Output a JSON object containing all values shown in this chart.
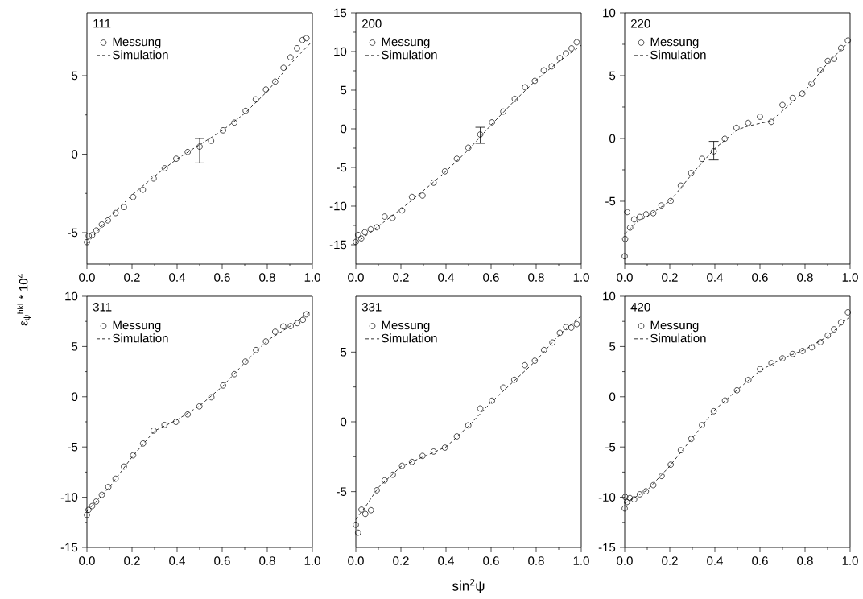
{
  "chart_data": [
    {
      "type": "scatter",
      "title": "111",
      "ylabel": "ε$_{ψ}$$^{hkl}$ * 10$^{4}$",
      "legend": "top left",
      "xlim": [
        0,
        1
      ],
      "ylim": [
        -7,
        9
      ],
      "xticks": [
        {
          "value": 0,
          "label": "0.0"
        },
        {
          "value": 0.2,
          "label": "0.2"
        },
        {
          "value": 0.4,
          "label": "0.4"
        },
        {
          "value": 0.6,
          "label": "0.6"
        },
        {
          "value": 0.8,
          "label": "0.8"
        },
        {
          "value": 1,
          "label": "1.0"
        }
      ],
      "yticks": [
        -5,
        0,
        5
      ],
      "series": [
        {
          "name": "Messung",
          "marker": "circle",
          "color": "#000000",
          "x": [
            0,
            0.008,
            0.023,
            0.042,
            0.066,
            0.093,
            0.127,
            0.164,
            0.205,
            0.248,
            0.296,
            0.345,
            0.396,
            0.447,
            0.5,
            0.551,
            0.604,
            0.654,
            0.704,
            0.749,
            0.794,
            0.835,
            0.872,
            0.903,
            0.932,
            0.956,
            0.974
          ],
          "values": [
            -5.6,
            -5.2,
            -5.16,
            -4.86,
            -4.48,
            -4.22,
            -3.75,
            -3.37,
            -2.73,
            -2.27,
            -1.55,
            -0.9,
            -0.29,
            0.14,
            0.48,
            0.85,
            1.52,
            2.01,
            2.76,
            3.49,
            4.12,
            4.62,
            5.5,
            6.17,
            6.75,
            7.27,
            7.39
          ],
          "errors": [
            null,
            null,
            null,
            null,
            null,
            null,
            null,
            null,
            null,
            null,
            null,
            null,
            null,
            null,
            [
              -0.56,
              1.0
            ],
            null,
            null,
            null,
            null,
            null,
            null,
            null,
            null,
            null,
            null,
            null,
            null
          ]
        },
        {
          "name": "Simulation",
          "type": "line",
          "marker": "none",
          "line_style": "dashed",
          "color": "#000000",
          "x": [
            0,
            0.1,
            0.2,
            0.3,
            0.4,
            0.5,
            0.6,
            0.7,
            0.8,
            0.9,
            1.0
          ],
          "values": [
            -5.7,
            -4.0,
            -2.6,
            -1.4,
            -0.3,
            0.6,
            1.5,
            2.6,
            4.0,
            5.7,
            7.2
          ]
        }
      ]
    },
    {
      "type": "scatter",
      "title": "200",
      "legend": "top left",
      "xlim": [
        0,
        1
      ],
      "ylim": [
        -17.5,
        15
      ],
      "xticks": [
        {
          "value": 0,
          "label": "0.0"
        },
        {
          "value": 0.2,
          "label": "0.2"
        },
        {
          "value": 0.4,
          "label": "0.4"
        },
        {
          "value": 0.6,
          "label": "0.6"
        },
        {
          "value": 0.8,
          "label": "0.8"
        },
        {
          "value": 1,
          "label": "1.0"
        }
      ],
      "yticks": [
        -15,
        -10,
        -5,
        0,
        5,
        10,
        15
      ],
      "series": [
        {
          "name": "Messung",
          "marker": "circle",
          "color": "#000000",
          "x": [
            0,
            0.01,
            0.024,
            0.04,
            0.066,
            0.093,
            0.128,
            0.163,
            0.205,
            0.249,
            0.296,
            0.345,
            0.395,
            0.448,
            0.499,
            0.552,
            0.604,
            0.654,
            0.705,
            0.751,
            0.794,
            0.834,
            0.869,
            0.905,
            0.932,
            0.957,
            0.98
          ],
          "values": [
            -14.63,
            -13.73,
            -14.18,
            -13.38,
            -13.0,
            -12.75,
            -11.36,
            -11.53,
            -10.56,
            -8.82,
            -8.64,
            -6.97,
            -5.51,
            -3.87,
            -2.44,
            -0.73,
            0.84,
            2.23,
            3.87,
            5.37,
            6.2,
            7.56,
            8.08,
            9.16,
            9.76,
            10.42,
            11.2
          ],
          "errors": [
            null,
            null,
            null,
            null,
            null,
            null,
            null,
            null,
            null,
            null,
            null,
            null,
            null,
            null,
            null,
            [
              -1.88,
              0.2
            ],
            null,
            null,
            null,
            null,
            null,
            null,
            null,
            null,
            null,
            null,
            null
          ]
        },
        {
          "name": "Simulation",
          "type": "line",
          "marker": "none",
          "line_style": "dashed",
          "color": "#000000",
          "x": [
            0,
            0.1,
            0.2,
            0.3,
            0.4,
            0.5,
            0.6,
            0.7,
            0.8,
            0.9,
            1.0
          ],
          "values": [
            -14.8,
            -12.6,
            -10.4,
            -8.0,
            -5.5,
            -2.7,
            0.5,
            3.5,
            6.3,
            8.7,
            10.8
          ]
        }
      ]
    },
    {
      "type": "scatter",
      "title": "220",
      "legend": "top left",
      "xlim": [
        0,
        1
      ],
      "ylim": [
        -10,
        10
      ],
      "xticks": [
        {
          "value": 0,
          "label": "0.0"
        },
        {
          "value": 0.2,
          "label": "0.2"
        },
        {
          "value": 0.4,
          "label": "0.4"
        },
        {
          "value": 0.6,
          "label": "0.6"
        },
        {
          "value": 0.8,
          "label": "0.8"
        },
        {
          "value": 1,
          "label": "1.0"
        }
      ],
      "yticks": [
        -5,
        0,
        5,
        10
      ],
      "series": [
        {
          "name": "Messung",
          "marker": "circle",
          "color": "#000000",
          "x": [
            0,
            0.002,
            0.011,
            0.024,
            0.042,
            0.067,
            0.095,
            0.127,
            0.163,
            0.204,
            0.249,
            0.295,
            0.343,
            0.395,
            0.444,
            0.496,
            0.548,
            0.6,
            0.65,
            0.7,
            0.745,
            0.788,
            0.829,
            0.868,
            0.901,
            0.929,
            0.96,
            0.99
          ],
          "values": [
            -9.38,
            -8.0,
            -5.86,
            -7.1,
            -6.44,
            -6.25,
            -6.03,
            -5.95,
            -5.33,
            -4.97,
            -3.75,
            -2.75,
            -1.62,
            -1.02,
            -0.02,
            0.85,
            1.24,
            1.73,
            1.32,
            2.67,
            3.22,
            3.58,
            4.36,
            5.44,
            6.18,
            6.35,
            7.2,
            7.8
          ],
          "errors": [
            null,
            null,
            null,
            null,
            null,
            null,
            null,
            null,
            null,
            null,
            null,
            null,
            null,
            [
              -1.71,
              -0.23
            ],
            null,
            null,
            null,
            null,
            null,
            null,
            null,
            null,
            null,
            null,
            null,
            null,
            null,
            null
          ]
        },
        {
          "name": "Simulation",
          "type": "line",
          "marker": "none",
          "line_style": "dashed",
          "color": "#000000",
          "x": [
            0,
            0.05,
            0.1,
            0.2,
            0.3,
            0.4,
            0.5,
            0.55,
            0.65,
            0.7,
            0.8,
            0.9,
            1.0
          ],
          "values": [
            -7.6,
            -6.7,
            -6.2,
            -5.0,
            -2.8,
            -0.8,
            0.7,
            1.0,
            1.4,
            2.2,
            3.8,
            6.0,
            7.8
          ]
        }
      ]
    },
    {
      "type": "scatter",
      "title": "311",
      "legend": "top left",
      "xlim": [
        0,
        1
      ],
      "ylim": [
        -15,
        10
      ],
      "xticks": [
        {
          "value": 0,
          "label": "0.0"
        },
        {
          "value": 0.2,
          "label": "0.2"
        },
        {
          "value": 0.4,
          "label": "0.4"
        },
        {
          "value": 0.6,
          "label": "0.6"
        },
        {
          "value": 0.8,
          "label": "0.8"
        },
        {
          "value": 1,
          "label": "1.0"
        }
      ],
      "yticks": [
        -15,
        -10,
        -5,
        0,
        5,
        10
      ],
      "series": [
        {
          "name": "Messung",
          "marker": "circle",
          "color": "#000000",
          "x": [
            0,
            0.007,
            0.023,
            0.041,
            0.066,
            0.095,
            0.127,
            0.164,
            0.205,
            0.249,
            0.296,
            0.344,
            0.395,
            0.447,
            0.499,
            0.552,
            0.604,
            0.654,
            0.703,
            0.75,
            0.794,
            0.835,
            0.871,
            0.904,
            0.933,
            0.958,
            0.974
          ],
          "values": [
            -11.76,
            -11.26,
            -10.88,
            -10.43,
            -9.76,
            -8.98,
            -8.16,
            -6.95,
            -5.83,
            -4.65,
            -3.37,
            -2.81,
            -2.51,
            -1.76,
            -0.96,
            -0.05,
            1.12,
            2.25,
            3.5,
            4.65,
            5.51,
            6.47,
            7.0,
            7.03,
            7.33,
            7.65,
            8.2
          ]
        },
        {
          "name": "Simulation",
          "type": "line",
          "marker": "none",
          "line_style": "dashed",
          "color": "#000000",
          "x": [
            0,
            0.1,
            0.2,
            0.3,
            0.4,
            0.5,
            0.6,
            0.7,
            0.8,
            0.9,
            1.0
          ],
          "values": [
            -11.4,
            -9.0,
            -6.0,
            -3.4,
            -2.3,
            -0.9,
            1.0,
            3.4,
            5.6,
            7.0,
            8.6
          ]
        }
      ]
    },
    {
      "type": "scatter",
      "title": "331",
      "xlabel": "sin$^{2}$ψ",
      "legend": "top left",
      "xlim": [
        0,
        1
      ],
      "ylim": [
        -9,
        9
      ],
      "xticks": [
        {
          "value": 0,
          "label": "0.0"
        },
        {
          "value": 0.2,
          "label": "0.2"
        },
        {
          "value": 0.4,
          "label": "0.4"
        },
        {
          "value": 0.6,
          "label": "0.6"
        },
        {
          "value": 0.8,
          "label": "0.8"
        },
        {
          "value": 1,
          "label": "1.0"
        }
      ],
      "yticks": [
        -5,
        0,
        5
      ],
      "series": [
        {
          "name": "Messung",
          "marker": "circle",
          "color": "#000000",
          "x": [
            0,
            0.01,
            0.025,
            0.042,
            0.067,
            0.093,
            0.128,
            0.164,
            0.205,
            0.249,
            0.296,
            0.345,
            0.395,
            0.448,
            0.499,
            0.552,
            0.604,
            0.654,
            0.703,
            0.75,
            0.794,
            0.835,
            0.872,
            0.905,
            0.933,
            0.956,
            0.98
          ],
          "values": [
            -7.37,
            -7.94,
            -6.29,
            -6.6,
            -6.33,
            -4.9,
            -4.19,
            -3.79,
            -3.15,
            -2.87,
            -2.44,
            -2.13,
            -1.85,
            -1.04,
            -0.25,
            0.96,
            1.52,
            2.46,
            3.02,
            4.06,
            4.38,
            5.15,
            5.69,
            6.38,
            6.79,
            6.75,
            7.0
          ]
        },
        {
          "name": "Simulation",
          "type": "line",
          "marker": "none",
          "line_style": "dashed",
          "color": "#000000",
          "x": [
            0,
            0.05,
            0.1,
            0.2,
            0.3,
            0.4,
            0.5,
            0.6,
            0.7,
            0.8,
            0.9,
            1.0
          ],
          "values": [
            -7.0,
            -5.9,
            -4.7,
            -3.2,
            -2.5,
            -1.8,
            -0.3,
            1.4,
            2.9,
            4.4,
            6.2,
            7.6
          ]
        }
      ]
    },
    {
      "type": "scatter",
      "title": "420",
      "legend": "top left",
      "xlim": [
        0,
        1
      ],
      "ylim": [
        -15,
        10
      ],
      "xticks": [
        {
          "value": 0,
          "label": "0.0"
        },
        {
          "value": 0.2,
          "label": "0.2"
        },
        {
          "value": 0.4,
          "label": "0.4"
        },
        {
          "value": 0.6,
          "label": "0.6"
        },
        {
          "value": 0.8,
          "label": "0.8"
        },
        {
          "value": 1,
          "label": "1.0"
        }
      ],
      "yticks": [
        -15,
        -10,
        -5,
        0,
        5,
        10
      ],
      "series": [
        {
          "name": "Messung",
          "marker": "circle",
          "color": "#000000",
          "x": [
            0,
            0.002,
            0.01,
            0.023,
            0.042,
            0.067,
            0.094,
            0.127,
            0.164,
            0.204,
            0.249,
            0.295,
            0.343,
            0.395,
            0.445,
            0.498,
            0.549,
            0.6,
            0.651,
            0.7,
            0.745,
            0.789,
            0.83,
            0.868,
            0.901,
            0.929,
            0.96,
            0.99
          ],
          "values": [
            -11.12,
            -9.97,
            -10.48,
            -10.08,
            -10.21,
            -9.71,
            -9.41,
            -8.8,
            -7.89,
            -6.76,
            -5.32,
            -4.2,
            -2.83,
            -1.44,
            -0.37,
            0.64,
            1.68,
            2.75,
            3.34,
            3.82,
            4.25,
            4.55,
            4.92,
            5.43,
            6.1,
            6.71,
            7.4,
            8.4
          ]
        },
        {
          "name": "Simulation",
          "type": "line",
          "marker": "none",
          "line_style": "dashed",
          "color": "#000000",
          "x": [
            0,
            0.1,
            0.2,
            0.3,
            0.4,
            0.5,
            0.6,
            0.7,
            0.8,
            0.9,
            1.0
          ],
          "values": [
            -10.6,
            -9.3,
            -6.9,
            -4.1,
            -1.3,
            0.7,
            2.6,
            3.8,
            4.7,
            6.0,
            8.0
          ]
        }
      ]
    }
  ]
}
